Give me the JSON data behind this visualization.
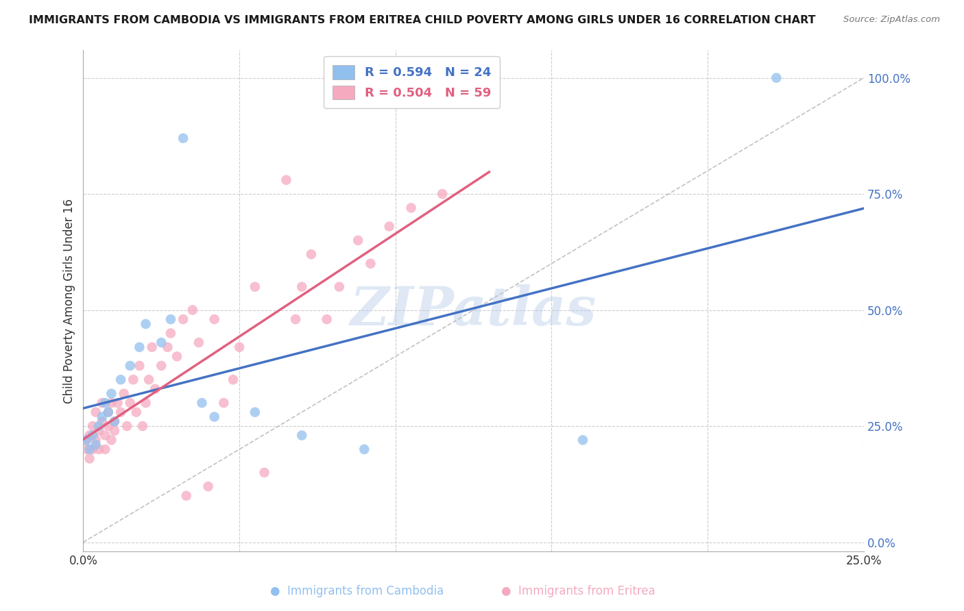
{
  "title": "IMMIGRANTS FROM CAMBODIA VS IMMIGRANTS FROM ERITREA CHILD POVERTY AMONG GIRLS UNDER 16 CORRELATION CHART",
  "source": "Source: ZipAtlas.com",
  "ylabel": "Child Poverty Among Girls Under 16",
  "xlim": [
    0.0,
    0.25
  ],
  "ylim": [
    0.0,
    1.0
  ],
  "ytick_vals": [
    0.0,
    0.25,
    0.5,
    0.75,
    1.0
  ],
  "xtick_vals": [
    0.0,
    0.05,
    0.1,
    0.15,
    0.2,
    0.25
  ],
  "color_cambodia": "#92C0EE",
  "color_eritrea": "#F5AABF",
  "color_line_cambodia": "#4472C4",
  "color_line_eritrea": "#E06080",
  "color_diagonal": "#BBBBBB",
  "watermark": "ZIPatlas",
  "background_color": "#FFFFFF",
  "grid_color": "#CCCCCC",
  "cam_x": [
    0.001,
    0.002,
    0.003,
    0.004,
    0.005,
    0.006,
    0.007,
    0.008,
    0.009,
    0.01,
    0.012,
    0.015,
    0.018,
    0.02,
    0.025,
    0.028,
    0.032,
    0.038,
    0.042,
    0.055,
    0.07,
    0.09,
    0.16,
    0.222
  ],
  "cam_y": [
    0.22,
    0.2,
    0.23,
    0.21,
    0.25,
    0.27,
    0.3,
    0.28,
    0.32,
    0.26,
    0.35,
    0.38,
    0.42,
    0.47,
    0.43,
    0.48,
    0.87,
    0.3,
    0.27,
    0.28,
    0.23,
    0.2,
    0.22,
    1.0
  ],
  "eri_x": [
    0.001,
    0.001,
    0.002,
    0.002,
    0.003,
    0.003,
    0.004,
    0.004,
    0.005,
    0.005,
    0.006,
    0.006,
    0.007,
    0.007,
    0.008,
    0.008,
    0.009,
    0.009,
    0.01,
    0.01,
    0.011,
    0.012,
    0.013,
    0.014,
    0.015,
    0.016,
    0.017,
    0.018,
    0.019,
    0.02,
    0.021,
    0.022,
    0.023,
    0.025,
    0.027,
    0.028,
    0.03,
    0.032,
    0.033,
    0.035,
    0.037,
    0.04,
    0.042,
    0.045,
    0.048,
    0.05,
    0.055,
    0.058,
    0.065,
    0.068,
    0.07,
    0.073,
    0.078,
    0.082,
    0.088,
    0.092,
    0.098,
    0.105,
    0.115
  ],
  "eri_y": [
    0.2,
    0.22,
    0.18,
    0.23,
    0.2,
    0.25,
    0.22,
    0.28,
    0.2,
    0.24,
    0.3,
    0.26,
    0.23,
    0.2,
    0.25,
    0.28,
    0.22,
    0.3,
    0.24,
    0.26,
    0.3,
    0.28,
    0.32,
    0.25,
    0.3,
    0.35,
    0.28,
    0.38,
    0.25,
    0.3,
    0.35,
    0.42,
    0.33,
    0.38,
    0.42,
    0.45,
    0.4,
    0.48,
    0.1,
    0.5,
    0.43,
    0.12,
    0.48,
    0.3,
    0.35,
    0.42,
    0.55,
    0.15,
    0.78,
    0.48,
    0.55,
    0.62,
    0.48,
    0.55,
    0.65,
    0.6,
    0.68,
    0.72,
    0.75
  ],
  "cam_line_x0": 0.0,
  "cam_line_y0": 0.18,
  "cam_line_x1": 0.25,
  "cam_line_y1": 0.85,
  "eri_line_x0": 0.0,
  "eri_line_y0": 0.18,
  "eri_line_x1": 0.12,
  "eri_line_y1": 0.75
}
